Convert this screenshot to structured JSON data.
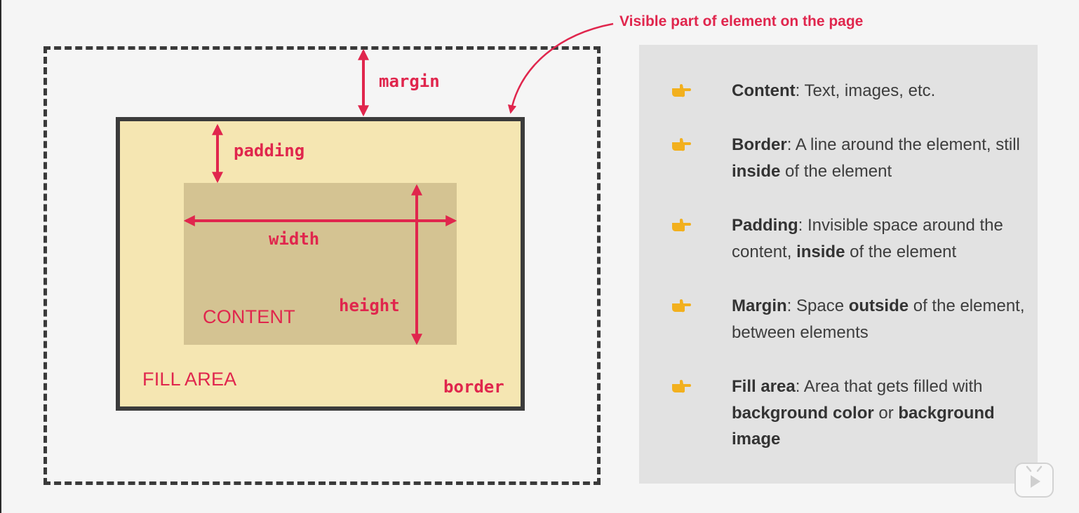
{
  "diagram": {
    "margin_label": "margin",
    "padding_label": "padding",
    "width_label": "width",
    "height_label": "height",
    "border_label": "border",
    "content_label": "CONTENT",
    "fill_area_label": "FILL AREA",
    "visible_part_label": "Visible part of element on the page"
  },
  "definitions": [
    {
      "term": "Content",
      "parts": [
        {
          "b": "Content"
        },
        {
          "t": ": Text, images, etc."
        }
      ]
    },
    {
      "term": "Border",
      "parts": [
        {
          "b": "Border"
        },
        {
          "t": ": A line around the element, still "
        },
        {
          "b": "inside"
        },
        {
          "t": " of the element"
        }
      ]
    },
    {
      "term": "Padding",
      "parts": [
        {
          "b": "Padding"
        },
        {
          "t": ": Invisible space around the content, "
        },
        {
          "b": "inside"
        },
        {
          "t": " of the element"
        }
      ]
    },
    {
      "term": "Margin",
      "parts": [
        {
          "b": "Margin"
        },
        {
          "t": ": Space "
        },
        {
          "b": "outside"
        },
        {
          "t": " of the element, between elements"
        }
      ]
    },
    {
      "term": "Fill area",
      "parts": [
        {
          "b": "Fill area"
        },
        {
          "t": ": Area that gets filled with "
        },
        {
          "b": "background color"
        },
        {
          "t": " or "
        },
        {
          "b": "background image"
        }
      ]
    }
  ],
  "colors": {
    "accent": "#e0264d",
    "fill_area": "#f5e6b2",
    "content_area": "#d4c392",
    "border": "#3b3b3b",
    "panel": "#e2e2e2",
    "hand": "#f2b01e"
  },
  "icons": {
    "bullet": "pointing-hand-icon",
    "player": "play-icon"
  }
}
